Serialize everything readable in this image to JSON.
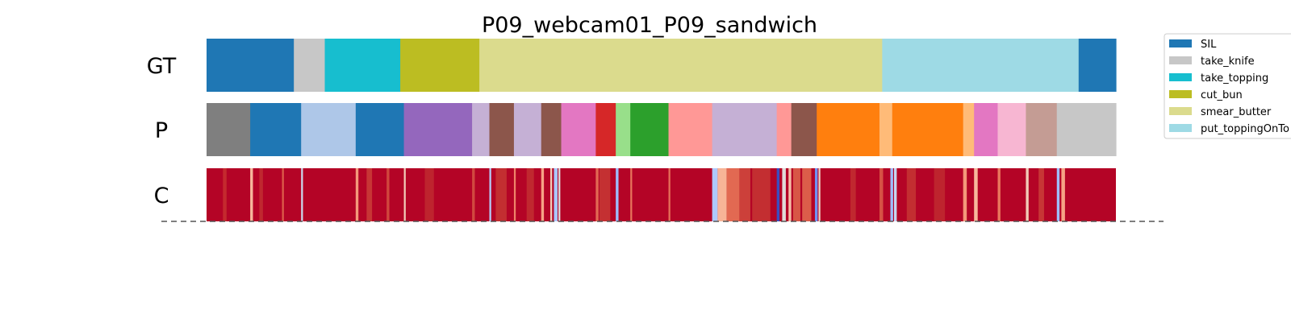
{
  "chart_data": {
    "type": "segmentation-timeline",
    "title": "P09_webcam01_P09_sandwich",
    "rows": [
      {
        "label": "GT",
        "segments": [
          {
            "start": 0.0,
            "end": 0.096,
            "color": "#1f77b4"
          },
          {
            "start": 0.096,
            "end": 0.13,
            "color": "#c7c7c7"
          },
          {
            "start": 0.13,
            "end": 0.213,
            "color": "#17becf"
          },
          {
            "start": 0.213,
            "end": 0.3,
            "color": "#bcbd22"
          },
          {
            "start": 0.3,
            "end": 0.743,
            "color": "#dbdb8d"
          },
          {
            "start": 0.743,
            "end": 0.959,
            "color": "#9edae5"
          },
          {
            "start": 0.959,
            "end": 1.0,
            "color": "#1f77b4"
          }
        ]
      },
      {
        "label": "P",
        "segments": [
          {
            "start": 0.0,
            "end": 0.048,
            "color": "#7f7f7f"
          },
          {
            "start": 0.048,
            "end": 0.104,
            "color": "#1f77b4"
          },
          {
            "start": 0.104,
            "end": 0.164,
            "color": "#aec7e8"
          },
          {
            "start": 0.164,
            "end": 0.217,
            "color": "#1f77b4"
          },
          {
            "start": 0.217,
            "end": 0.292,
            "color": "#9467bd"
          },
          {
            "start": 0.292,
            "end": 0.311,
            "color": "#c5b0d5"
          },
          {
            "start": 0.311,
            "end": 0.338,
            "color": "#8c564b"
          },
          {
            "start": 0.338,
            "end": 0.368,
            "color": "#c5b0d5"
          },
          {
            "start": 0.368,
            "end": 0.39,
            "color": "#8c564b"
          },
          {
            "start": 0.39,
            "end": 0.428,
            "color": "#e377c2"
          },
          {
            "start": 0.428,
            "end": 0.45,
            "color": "#d62728"
          },
          {
            "start": 0.45,
            "end": 0.466,
            "color": "#98df8a"
          },
          {
            "start": 0.466,
            "end": 0.508,
            "color": "#2ca02c"
          },
          {
            "start": 0.508,
            "end": 0.556,
            "color": "#ff9896"
          },
          {
            "start": 0.556,
            "end": 0.627,
            "color": "#c5b0d5"
          },
          {
            "start": 0.627,
            "end": 0.643,
            "color": "#ff9896"
          },
          {
            "start": 0.643,
            "end": 0.671,
            "color": "#8c564b"
          },
          {
            "start": 0.671,
            "end": 0.74,
            "color": "#ff7f0e"
          },
          {
            "start": 0.74,
            "end": 0.754,
            "color": "#ffbb78"
          },
          {
            "start": 0.754,
            "end": 0.832,
            "color": "#ff7f0e"
          },
          {
            "start": 0.832,
            "end": 0.844,
            "color": "#ffbb78"
          },
          {
            "start": 0.844,
            "end": 0.87,
            "color": "#e377c2"
          },
          {
            "start": 0.87,
            "end": 0.901,
            "color": "#f7b6d2"
          },
          {
            "start": 0.901,
            "end": 0.935,
            "color": "#c49c94"
          },
          {
            "start": 0.935,
            "end": 1.0,
            "color": "#c7c7c7"
          }
        ]
      },
      {
        "label": "C",
        "base_color": "#b40426",
        "streaks": [
          {
            "pos": 0.018,
            "w": 0.004,
            "color": "#c42a2e"
          },
          {
            "pos": 0.048,
            "w": 0.003,
            "color": "#f7b89c"
          },
          {
            "pos": 0.058,
            "w": 0.004,
            "color": "#c0282f"
          },
          {
            "pos": 0.083,
            "w": 0.002,
            "color": "#dc5d4a"
          },
          {
            "pos": 0.104,
            "w": 0.002,
            "color": "#cbd8ee"
          },
          {
            "pos": 0.164,
            "w": 0.003,
            "color": "#f4987a"
          },
          {
            "pos": 0.176,
            "w": 0.006,
            "color": "#c73635"
          },
          {
            "pos": 0.198,
            "w": 0.003,
            "color": "#d0473d"
          },
          {
            "pos": 0.217,
            "w": 0.002,
            "color": "#f2cbb7"
          },
          {
            "pos": 0.24,
            "w": 0.01,
            "color": "#be242e"
          },
          {
            "pos": 0.292,
            "w": 0.003,
            "color": "#d1493f"
          },
          {
            "pos": 0.311,
            "w": 0.002,
            "color": "#b3cdfb"
          },
          {
            "pos": 0.318,
            "w": 0.012,
            "color": "#c32e31"
          },
          {
            "pos": 0.338,
            "w": 0.002,
            "color": "#ee8468"
          },
          {
            "pos": 0.352,
            "w": 0.008,
            "color": "#c0282f"
          },
          {
            "pos": 0.368,
            "w": 0.003,
            "color": "#f6a385"
          },
          {
            "pos": 0.378,
            "w": 0.002,
            "color": "#f2cbb7"
          },
          {
            "pos": 0.382,
            "w": 0.004,
            "color": "#aac7fd"
          },
          {
            "pos": 0.387,
            "w": 0.002,
            "color": "#dddcdc"
          },
          {
            "pos": 0.428,
            "w": 0.003,
            "color": "#e26952"
          },
          {
            "pos": 0.432,
            "w": 0.012,
            "color": "#c43032"
          },
          {
            "pos": 0.45,
            "w": 0.003,
            "color": "#9dbdff"
          },
          {
            "pos": 0.466,
            "w": 0.002,
            "color": "#e7745b"
          },
          {
            "pos": 0.508,
            "w": 0.002,
            "color": "#e57058"
          },
          {
            "pos": 0.556,
            "w": 0.006,
            "color": "#aec9fc"
          },
          {
            "pos": 0.562,
            "w": 0.01,
            "color": "#f7b497"
          },
          {
            "pos": 0.572,
            "w": 0.014,
            "color": "#e26952"
          },
          {
            "pos": 0.586,
            "w": 0.012,
            "color": "#cc403a"
          },
          {
            "pos": 0.6,
            "w": 0.02,
            "color": "#c32e31"
          },
          {
            "pos": 0.627,
            "w": 0.003,
            "color": "#3b4cc0"
          },
          {
            "pos": 0.633,
            "w": 0.004,
            "color": "#e0dbd8"
          },
          {
            "pos": 0.64,
            "w": 0.003,
            "color": "#f5c0a7"
          },
          {
            "pos": 0.645,
            "w": 0.008,
            "color": "#d85646"
          },
          {
            "pos": 0.655,
            "w": 0.01,
            "color": "#dc5d4a"
          },
          {
            "pos": 0.669,
            "w": 0.003,
            "color": "#6f92f3"
          },
          {
            "pos": 0.673,
            "w": 0.002,
            "color": "#edd1c2"
          },
          {
            "pos": 0.708,
            "w": 0.006,
            "color": "#c0282f"
          },
          {
            "pos": 0.74,
            "w": 0.004,
            "color": "#d65244"
          },
          {
            "pos": 0.752,
            "w": 0.003,
            "color": "#9ebeff"
          },
          {
            "pos": 0.756,
            "w": 0.003,
            "color": "#c6d6f1"
          },
          {
            "pos": 0.77,
            "w": 0.01,
            "color": "#c32e31"
          },
          {
            "pos": 0.8,
            "w": 0.012,
            "color": "#be242e"
          },
          {
            "pos": 0.832,
            "w": 0.004,
            "color": "#f4987a"
          },
          {
            "pos": 0.844,
            "w": 0.004,
            "color": "#f7b89c"
          },
          {
            "pos": 0.87,
            "w": 0.003,
            "color": "#e9785d"
          },
          {
            "pos": 0.901,
            "w": 0.003,
            "color": "#f2cbb7"
          },
          {
            "pos": 0.915,
            "w": 0.006,
            "color": "#c73635"
          },
          {
            "pos": 0.935,
            "w": 0.003,
            "color": "#9ebeff"
          },
          {
            "pos": 0.94,
            "w": 0.004,
            "color": "#f6a385"
          }
        ]
      }
    ],
    "legend": {
      "position": "top-right",
      "items": [
        {
          "label": "SIL",
          "color": "#1f77b4"
        },
        {
          "label": "take_knife",
          "color": "#c7c7c7"
        },
        {
          "label": "take_topping",
          "color": "#17becf"
        },
        {
          "label": "cut_bun",
          "color": "#bcbd22"
        },
        {
          "label": "smear_butter",
          "color": "#dbdb8d"
        },
        {
          "label": "put_toppingOnTo",
          "color": "#9edae5"
        }
      ]
    },
    "dashed_baseline": true
  }
}
